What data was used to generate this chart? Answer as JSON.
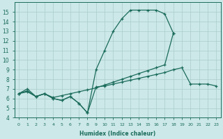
{
  "bg_color": "#cce8e8",
  "grid_color": "#aacccc",
  "line_color": "#1a6b5a",
  "xlabel": "Humidex (Indice chaleur)",
  "xlim": [
    -0.5,
    23.5
  ],
  "ylim": [
    4,
    16
  ],
  "xticks": [
    0,
    1,
    2,
    3,
    4,
    5,
    6,
    7,
    8,
    9,
    10,
    11,
    12,
    13,
    14,
    15,
    16,
    17,
    18,
    19,
    20,
    21,
    22,
    23
  ],
  "yticks": [
    4,
    5,
    6,
    7,
    8,
    9,
    10,
    11,
    12,
    13,
    14,
    15
  ],
  "line1_x": [
    0,
    1,
    2,
    3,
    4,
    5,
    6,
    7,
    8,
    9,
    10,
    11,
    12,
    13,
    14,
    15,
    16,
    17,
    18
  ],
  "line1_y": [
    6.5,
    7.0,
    6.2,
    6.5,
    6.0,
    5.8,
    6.2,
    5.5,
    4.5,
    9.0,
    11.0,
    13.0,
    14.3,
    15.2,
    15.2,
    15.2,
    15.2,
    14.8,
    12.8
  ],
  "line2_x": [
    0,
    1,
    2,
    3,
    4,
    5,
    6,
    7,
    8,
    9,
    10,
    11,
    12,
    13,
    14,
    15,
    16,
    17,
    18
  ],
  "line2_y": [
    6.5,
    6.8,
    6.2,
    6.5,
    6.1,
    6.3,
    6.5,
    6.7,
    6.9,
    7.1,
    7.4,
    7.7,
    8.0,
    8.3,
    8.6,
    8.9,
    9.2,
    9.5,
    12.8
  ],
  "line3_x": [
    0,
    1,
    2,
    3,
    4,
    5,
    6,
    7,
    8,
    9,
    10,
    11,
    12,
    13,
    14,
    15,
    16,
    17,
    18,
    19,
    20,
    21,
    22,
    23
  ],
  "line3_y": [
    6.5,
    6.7,
    6.2,
    6.5,
    6.0,
    5.8,
    6.2,
    5.5,
    4.5,
    7.2,
    7.3,
    7.5,
    7.7,
    7.9,
    8.1,
    8.3,
    8.5,
    8.7,
    9.0,
    9.2,
    7.5,
    7.5,
    7.5,
    7.3
  ]
}
